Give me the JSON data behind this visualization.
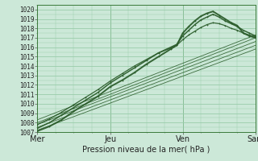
{
  "xlabel": "Pression niveau de la mer( hPa )",
  "bg_color": "#cce8d8",
  "grid_color": "#99ccaa",
  "line_color": "#2d5e2d",
  "ylim": [
    1007,
    1020.5
  ],
  "xlim": [
    0,
    72
  ],
  "day_ticks": [
    0,
    24,
    48,
    72
  ],
  "day_labels": [
    "Mer",
    "Jeu",
    "Ven",
    "Sam"
  ],
  "yticks": [
    1007,
    1008,
    1009,
    1010,
    1011,
    1012,
    1013,
    1014,
    1015,
    1016,
    1017,
    1018,
    1019,
    1020
  ],
  "lines_smooth": [
    {
      "x": [
        0,
        72
      ],
      "y": [
        1007.2,
        1015.8
      ]
    },
    {
      "x": [
        0,
        72
      ],
      "y": [
        1007.5,
        1016.2
      ]
    },
    {
      "x": [
        0,
        72
      ],
      "y": [
        1007.8,
        1016.6
      ]
    },
    {
      "x": [
        0,
        72
      ],
      "y": [
        1008.0,
        1017.0
      ]
    },
    {
      "x": [
        0,
        72
      ],
      "y": [
        1008.3,
        1017.3
      ]
    }
  ],
  "lines_detailed": [
    {
      "x": [
        0,
        4,
        8,
        12,
        16,
        20,
        24,
        28,
        32,
        36,
        40,
        44,
        46,
        48,
        50,
        52,
        54,
        56,
        58,
        60,
        62,
        64,
        66,
        68,
        70,
        72
      ],
      "y": [
        1007.1,
        1007.6,
        1008.3,
        1009.2,
        1010.0,
        1010.8,
        1011.8,
        1012.5,
        1013.3,
        1014.2,
        1015.0,
        1015.8,
        1016.2,
        1017.5,
        1018.2,
        1018.8,
        1019.3,
        1019.6,
        1019.8,
        1019.4,
        1019.0,
        1018.6,
        1018.3,
        1017.5,
        1017.2,
        1017.0
      ],
      "lw": 1.4,
      "marker": "+"
    },
    {
      "x": [
        0,
        4,
        8,
        12,
        16,
        20,
        24,
        28,
        32,
        36,
        40,
        44,
        46,
        48,
        50,
        52,
        54,
        56,
        58,
        60,
        62,
        64,
        66,
        68,
        70,
        72
      ],
      "y": [
        1007.4,
        1008.0,
        1008.8,
        1009.6,
        1010.4,
        1011.2,
        1012.2,
        1013.0,
        1013.8,
        1014.6,
        1015.4,
        1016.0,
        1016.3,
        1017.2,
        1017.8,
        1018.4,
        1018.9,
        1019.2,
        1019.5,
        1019.2,
        1018.8,
        1018.5,
        1018.2,
        1017.8,
        1017.5,
        1017.2
      ],
      "lw": 1.1,
      "marker": "+"
    },
    {
      "x": [
        0,
        4,
        8,
        12,
        16,
        20,
        24,
        28,
        32,
        36,
        40,
        44,
        46,
        48,
        50,
        52,
        54,
        56,
        58,
        60,
        62,
        64,
        66,
        68,
        70,
        72
      ],
      "y": [
        1007.8,
        1008.4,
        1009.1,
        1009.9,
        1010.7,
        1011.5,
        1012.4,
        1013.2,
        1014.0,
        1014.7,
        1015.4,
        1015.9,
        1016.2,
        1016.8,
        1017.3,
        1017.7,
        1018.1,
        1018.4,
        1018.6,
        1018.5,
        1018.3,
        1018.0,
        1017.8,
        1017.5,
        1017.3,
        1017.1
      ],
      "lw": 0.9,
      "marker": "+"
    }
  ]
}
